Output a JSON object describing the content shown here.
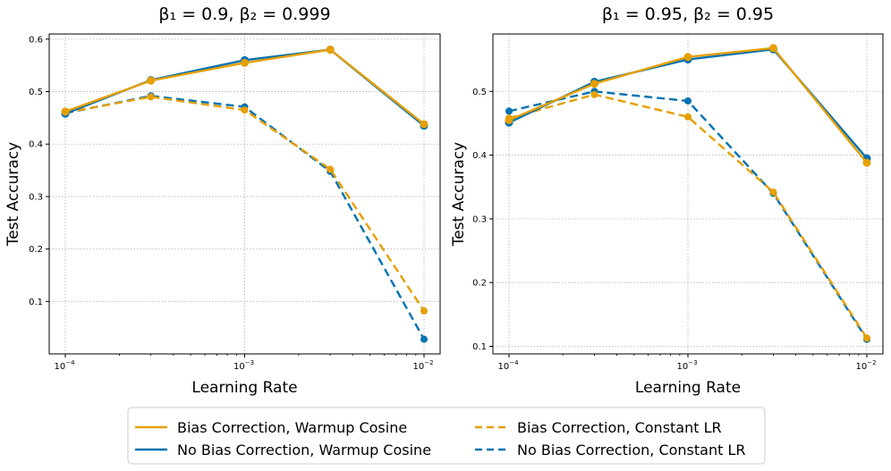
{
  "chart_data": [
    {
      "type": "line",
      "title": "β₁ = 0.9, β₂ = 0.999",
      "xlabel": "Learning Rate",
      "ylabel": "Test Accuracy",
      "xscale": "log",
      "x": [
        0.0001,
        0.0003,
        0.001,
        0.003,
        0.01
      ],
      "xticks": [
        {
          "value": 0.0001,
          "base": "10",
          "exp": "−4"
        },
        {
          "value": 0.001,
          "base": "10",
          "exp": "−3"
        },
        {
          "value": 0.01,
          "base": "10",
          "exp": "−2"
        }
      ],
      "yticks": [
        "0.1",
        "0.2",
        "0.3",
        "0.4",
        "0.5",
        "0.6"
      ],
      "ylim": [
        0.0,
        0.61
      ],
      "grid": true,
      "series": [
        {
          "name": "Bias Correction, Warmup Cosine",
          "values": [
            0.462,
            0.521,
            0.555,
            0.58,
            0.438
          ]
        },
        {
          "name": "No Bias Correction, Warmup Cosine",
          "values": [
            0.458,
            0.522,
            0.56,
            0.58,
            0.435
          ]
        },
        {
          "name": "Bias Correction, Constant LR",
          "values": [
            0.46,
            0.49,
            0.465,
            0.352,
            0.082
          ]
        },
        {
          "name": "No Bias Correction, Constant LR",
          "values": [
            0.459,
            0.492,
            0.471,
            0.348,
            0.028
          ]
        }
      ]
    },
    {
      "type": "line",
      "title": "β₁ = 0.95, β₂ = 0.95",
      "xlabel": "Learning Rate",
      "ylabel": "Test Accuracy",
      "xscale": "log",
      "x": [
        0.0001,
        0.0003,
        0.001,
        0.003,
        0.01
      ],
      "xticks": [
        {
          "value": 0.0001,
          "base": "10",
          "exp": "−4"
        },
        {
          "value": 0.001,
          "base": "10",
          "exp": "−3"
        },
        {
          "value": 0.01,
          "base": "10",
          "exp": "−2"
        }
      ],
      "yticks": [
        "0.1",
        "0.2",
        "0.3",
        "0.4",
        "0.5"
      ],
      "ylim": [
        0.0881,
        0.5901
      ],
      "grid": true,
      "series": [
        {
          "name": "Bias Correction, Warmup Cosine",
          "values": [
            0.455,
            0.512,
            0.554,
            0.568,
            0.388
          ]
        },
        {
          "name": "No Bias Correction, Warmup Cosine",
          "values": [
            0.451,
            0.515,
            0.55,
            0.566,
            0.395
          ]
        },
        {
          "name": "Bias Correction, Constant LR",
          "values": [
            0.458,
            0.495,
            0.46,
            0.342,
            0.113
          ]
        },
        {
          "name": "No Bias Correction, Constant LR",
          "values": [
            0.469,
            0.5,
            0.485,
            0.34,
            0.111
          ]
        }
      ]
    }
  ],
  "legend": {
    "placement": "bottom",
    "entries": [
      {
        "label": "Bias Correction, Warmup Cosine",
        "color": "#E69F00",
        "style": "solid"
      },
      {
        "label": "No Bias Correction, Warmup Cosine",
        "color": "#0072B2",
        "style": "solid"
      },
      {
        "label": "Bias Correction, Constant LR",
        "color": "#E69F00",
        "style": "dashed"
      },
      {
        "label": "No Bias Correction, Constant LR",
        "color": "#0072B2",
        "style": "dashed"
      }
    ]
  },
  "colors": {
    "orange": "#E69F00",
    "blue": "#0072B2"
  }
}
